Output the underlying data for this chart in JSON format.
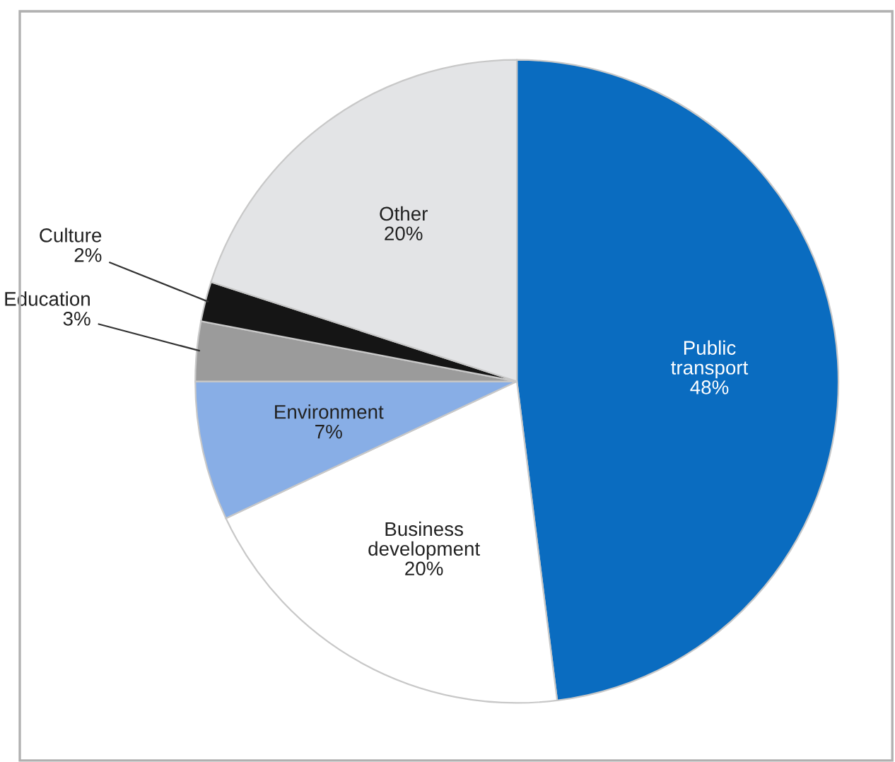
{
  "chart_data": {
    "type": "pie",
    "categories": [
      "Public\ntransport",
      "Business\ndevelopment",
      "Environment",
      "Education",
      "Culture",
      "Other"
    ],
    "values": [
      48,
      20,
      7,
      3,
      2,
      20
    ],
    "value_labels": [
      "48%",
      "20%",
      "7%",
      "3%",
      "2%",
      "20%"
    ],
    "colors": [
      "#0a6cc0",
      "#ffffff",
      "#88aee6",
      "#9b9b9b",
      "#151515",
      "#e3e4e6"
    ]
  }
}
